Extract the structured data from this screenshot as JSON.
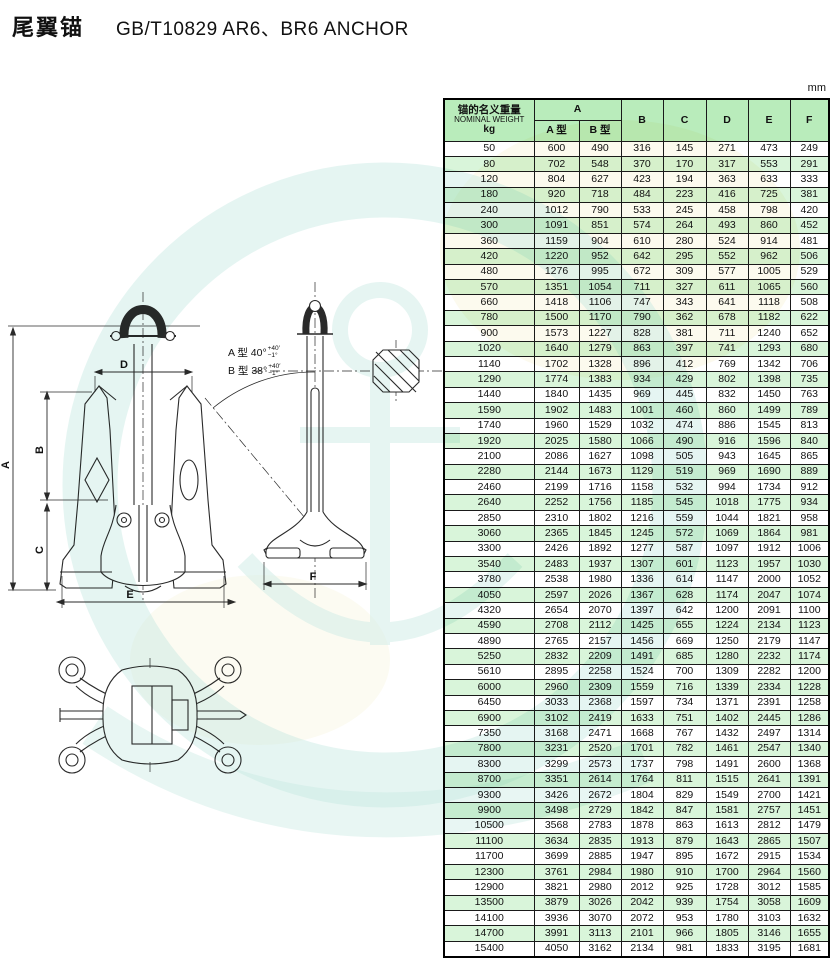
{
  "page": {
    "unit_label": "mm"
  },
  "title": {
    "zh": "尾翼锚",
    "en": "GB/T10829  AR6、BR6 ANCHOR"
  },
  "drawing": {
    "dims": {
      "a": "A",
      "b": "B",
      "c": "C",
      "d": "D",
      "e": "E",
      "f": "F"
    },
    "angle_a_prefix": "A 型 40°",
    "angle_b_prefix": "B 型 38°",
    "angle_tol_sup": "+40′",
    "angle_tol_sub": "−1°"
  },
  "table": {
    "header": {
      "weight_zh": "锚的名义重量",
      "weight_en": "NOMINAL WEIGHT",
      "weight_unit": "kg",
      "col_a": "A",
      "col_a_sub1": "A 型",
      "col_a_sub2": "B 型",
      "cols": [
        "B",
        "C",
        "D",
        "E",
        "F"
      ]
    },
    "rows": [
      [
        50,
        600,
        490,
        316,
        145,
        271,
        473,
        249
      ],
      [
        80,
        702,
        548,
        370,
        170,
        317,
        553,
        291
      ],
      [
        120,
        804,
        627,
        423,
        194,
        363,
        633,
        333
      ],
      [
        180,
        920,
        718,
        484,
        223,
        416,
        725,
        381
      ],
      [
        240,
        1012,
        790,
        533,
        245,
        458,
        798,
        420
      ],
      [
        300,
        1091,
        851,
        574,
        264,
        493,
        860,
        452
      ],
      [
        360,
        1159,
        904,
        610,
        280,
        524,
        914,
        481
      ],
      [
        420,
        1220,
        952,
        642,
        295,
        552,
        962,
        506
      ],
      [
        480,
        1276,
        995,
        672,
        309,
        577,
        1005,
        529
      ],
      [
        570,
        1351,
        1054,
        711,
        327,
        611,
        1065,
        560
      ],
      [
        660,
        1418,
        1106,
        747,
        343,
        641,
        1118,
        508
      ],
      [
        780,
        1500,
        1170,
        790,
        362,
        678,
        1182,
        622
      ],
      [
        900,
        1573,
        1227,
        828,
        381,
        711,
        1240,
        652
      ],
      [
        1020,
        1640,
        1279,
        863,
        397,
        741,
        1293,
        680
      ],
      [
        1140,
        1702,
        1328,
        896,
        412,
        769,
        1342,
        706
      ],
      [
        1290,
        1774,
        1383,
        934,
        429,
        802,
        1398,
        735
      ],
      [
        1440,
        1840,
        1435,
        969,
        445,
        832,
        1450,
        763
      ],
      [
        1590,
        1902,
        1483,
        1001,
        460,
        860,
        1499,
        789
      ],
      [
        1740,
        1960,
        1529,
        1032,
        474,
        886,
        1545,
        813
      ],
      [
        1920,
        2025,
        1580,
        1066,
        490,
        916,
        1596,
        840
      ],
      [
        2100,
        2086,
        1627,
        1098,
        505,
        943,
        1645,
        865
      ],
      [
        2280,
        2144,
        1673,
        1129,
        519,
        969,
        1690,
        889
      ],
      [
        2460,
        2199,
        1716,
        1158,
        532,
        994,
        1734,
        912
      ],
      [
        2640,
        2252,
        1756,
        1185,
        545,
        1018,
        1775,
        934
      ],
      [
        2850,
        2310,
        1802,
        1216,
        559,
        1044,
        1821,
        958
      ],
      [
        3060,
        2365,
        1845,
        1245,
        572,
        1069,
        1864,
        981
      ],
      [
        3300,
        2426,
        1892,
        1277,
        587,
        1097,
        1912,
        1006
      ],
      [
        3540,
        2483,
        1937,
        1307,
        601,
        1123,
        1957,
        1030
      ],
      [
        3780,
        2538,
        1980,
        1336,
        614,
        1147,
        2000,
        1052
      ],
      [
        4050,
        2597,
        2026,
        1367,
        628,
        1174,
        2047,
        1074
      ],
      [
        4320,
        2654,
        2070,
        1397,
        642,
        1200,
        2091,
        1100
      ],
      [
        4590,
        2708,
        2112,
        1425,
        655,
        1224,
        2134,
        1123
      ],
      [
        4890,
        2765,
        2157,
        1456,
        669,
        1250,
        2179,
        1147
      ],
      [
        5250,
        2832,
        2209,
        1491,
        685,
        1280,
        2232,
        1174
      ],
      [
        5610,
        2895,
        2258,
        1524,
        700,
        1309,
        2282,
        1200
      ],
      [
        6000,
        2960,
        2309,
        1559,
        716,
        1339,
        2334,
        1228
      ],
      [
        6450,
        3033,
        2368,
        1597,
        734,
        1371,
        2391,
        1258
      ],
      [
        6900,
        3102,
        2419,
        1633,
        751,
        1402,
        2445,
        1286
      ],
      [
        7350,
        3168,
        2471,
        1668,
        767,
        1432,
        2497,
        1314
      ],
      [
        7800,
        3231,
        2520,
        1701,
        782,
        1461,
        2547,
        1340
      ],
      [
        8300,
        3299,
        2573,
        1737,
        798,
        1491,
        2600,
        1368
      ],
      [
        8700,
        3351,
        2614,
        1764,
        811,
        1515,
        2641,
        1391
      ],
      [
        9300,
        3426,
        2672,
        1804,
        829,
        1549,
        2700,
        1421
      ],
      [
        9900,
        3498,
        2729,
        1842,
        847,
        1581,
        2757,
        1451
      ],
      [
        10500,
        3568,
        2783,
        1878,
        863,
        1613,
        2812,
        1479
      ],
      [
        11100,
        3634,
        2835,
        1913,
        879,
        1643,
        2865,
        1507
      ],
      [
        11700,
        3699,
        2885,
        1947,
        895,
        1672,
        2915,
        1534
      ],
      [
        12300,
        3761,
        2984,
        1980,
        910,
        1700,
        2964,
        1560
      ],
      [
        12900,
        3821,
        2980,
        2012,
        925,
        1728,
        3012,
        1585
      ],
      [
        13500,
        3879,
        3026,
        2042,
        939,
        1754,
        3058,
        1609
      ],
      [
        14100,
        3936,
        3070,
        2072,
        953,
        1780,
        3103,
        1632
      ],
      [
        14700,
        3991,
        3113,
        2101,
        966,
        1805,
        3146,
        1655
      ],
      [
        15400,
        4050,
        3162,
        2134,
        981,
        1833,
        3195,
        1681
      ]
    ]
  },
  "colors": {
    "header_bg": "#b9ecbb",
    "row_alt_bg": "#d9f5da",
    "border": "#000000",
    "watermark_cyan": "#c6e9e2",
    "watermark_yellow": "#f5f1cf"
  }
}
